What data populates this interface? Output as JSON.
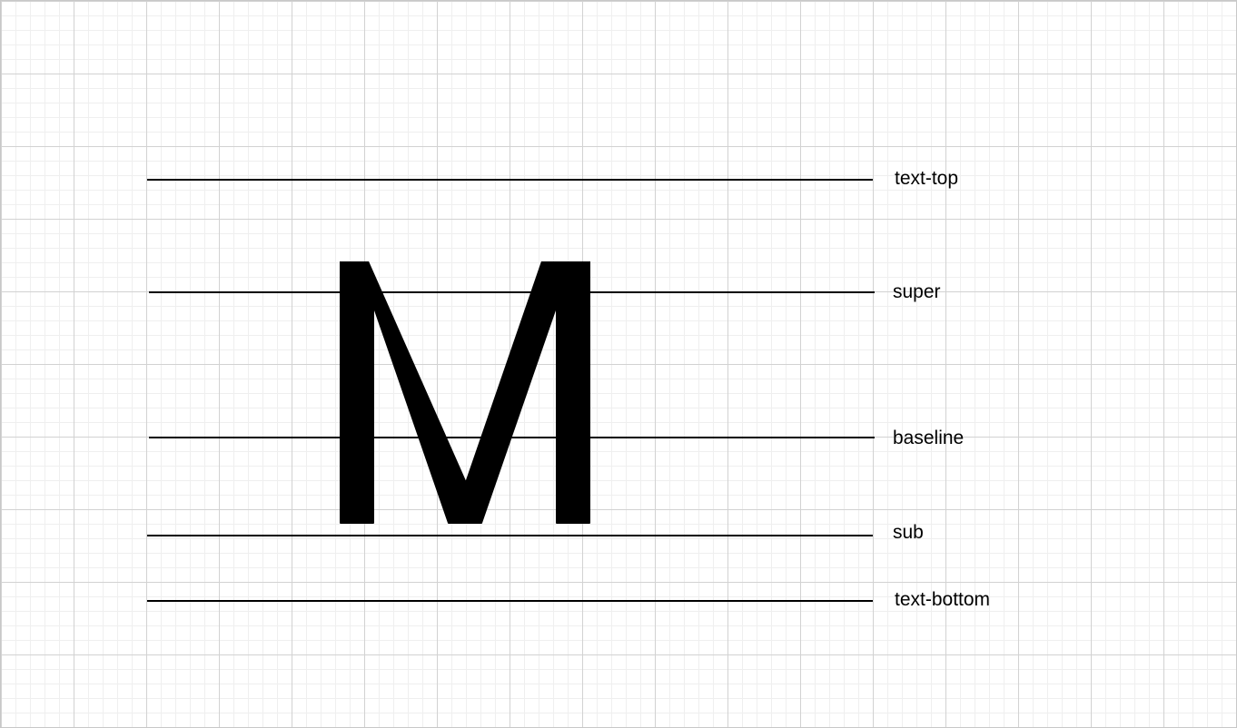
{
  "diagram": {
    "glyph": "M",
    "guides": [
      {
        "id": "text-top",
        "label": "text-top"
      },
      {
        "id": "super",
        "label": "super"
      },
      {
        "id": "baseline",
        "label": "baseline"
      },
      {
        "id": "sub",
        "label": "sub"
      },
      {
        "id": "text-bottom",
        "label": "text-bottom"
      }
    ]
  }
}
